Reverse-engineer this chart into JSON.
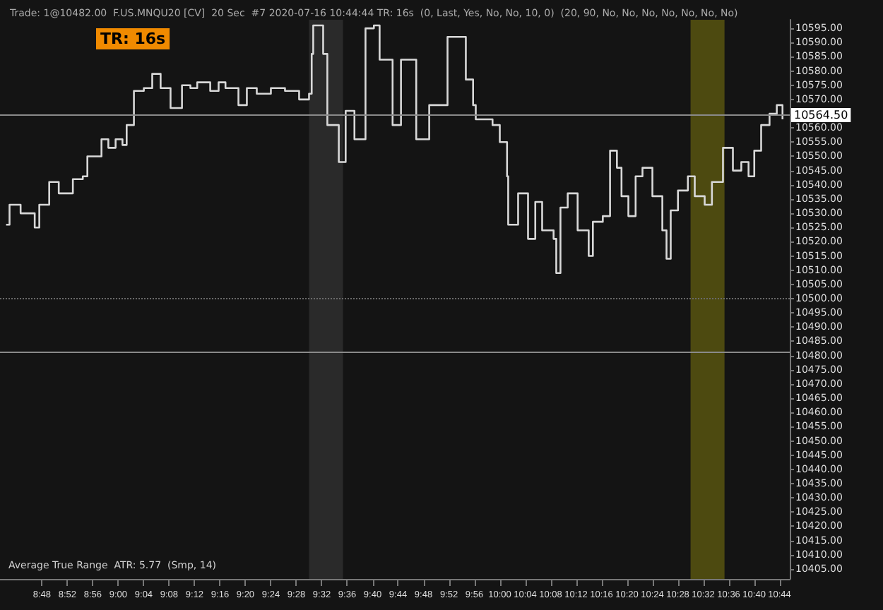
{
  "chart_data": {
    "type": "step",
    "title": "Trade: 1@10482.00  F.US.MNQU20 [CV]  20 Sec  #7 2020-07-16 10:44:44 TR: 16s  (0, Last, Yes, No, No, 10, 0)  (20, 90, No, No, No, No, No, No, No)",
    "annotations": [
      "TR: 16s",
      "Average True Range  ATR: 5.77  (Smp, 14)"
    ],
    "x": [
      8.706,
      8.715,
      8.744,
      8.781,
      8.793,
      8.819,
      8.844,
      8.881,
      8.907,
      8.919,
      8.956,
      8.974,
      8.993,
      9.011,
      9.022,
      9.041,
      9.067,
      9.089,
      9.111,
      9.137,
      9.167,
      9.189,
      9.207,
      9.241,
      9.263,
      9.281,
      9.315,
      9.337,
      9.363,
      9.4,
      9.437,
      9.474,
      9.5,
      9.507,
      9.511,
      9.537,
      9.548,
      9.578,
      9.596,
      9.619,
      9.648,
      9.67,
      9.685,
      9.719,
      9.741,
      9.781,
      9.815,
      9.863,
      9.881,
      9.911,
      9.93,
      9.937,
      9.981,
      10.0,
      10.019,
      10.022,
      10.048,
      10.074,
      10.093,
      10.111,
      10.141,
      10.148,
      10.159,
      10.178,
      10.204,
      10.233,
      10.244,
      10.27,
      10.289,
      10.307,
      10.319,
      10.337,
      10.356,
      10.374,
      10.4,
      10.426,
      10.437,
      10.448,
      10.467,
      10.493,
      10.511,
      10.537,
      10.556,
      10.585,
      10.611,
      10.633,
      10.652,
      10.667,
      10.685,
      10.707,
      10.726,
      10.741
    ],
    "series": [
      {
        "color": "#d8d8d8",
        "values": [
          10526,
          10533,
          10530,
          10525,
          10533,
          10541,
          10537,
          10542,
          10543,
          10550,
          10556,
          10553,
          10556,
          10554,
          10561,
          10573,
          10574,
          10579,
          10574,
          10567,
          10575,
          10574,
          10576,
          10573,
          10576,
          10574,
          10568,
          10574,
          10572,
          10574,
          10573,
          10570,
          10572,
          10586,
          10596,
          10586,
          10561,
          10548,
          10566,
          10556,
          10595,
          10596,
          10584,
          10561,
          10584,
          10556,
          10568,
          10592,
          10592,
          10577,
          10568,
          10563,
          10561,
          10555,
          10543,
          10526,
          10537,
          10521,
          10534,
          10524,
          10521,
          10509,
          10532,
          10537,
          10524,
          10515,
          10527,
          10529,
          10552,
          10546,
          10536,
          10529,
          10543,
          10546,
          10536,
          10524,
          10514,
          10531,
          10538,
          10543,
          10536,
          10533,
          10541,
          10553,
          10545,
          10548,
          10543,
          10552,
          10561,
          10565,
          10568,
          10563
        ]
      }
    ],
    "xlim": [
      8.69,
      10.76
    ],
    "ylim": [
      10401.5,
      10598
    ],
    "xticks": [
      {
        "value": 8.8,
        "label": "8:48"
      },
      {
        "value": 8.8667,
        "label": "8:52"
      },
      {
        "value": 8.9333,
        "label": "8:56"
      },
      {
        "value": 9,
        "label": "9:00"
      },
      {
        "value": 9.0667,
        "label": "9:04"
      },
      {
        "value": 9.1333,
        "label": "9:08"
      },
      {
        "value": 9.2,
        "label": "9:12"
      },
      {
        "value": 9.2667,
        "label": "9:16"
      },
      {
        "value": 9.3333,
        "label": "9:20"
      },
      {
        "value": 9.4,
        "label": "9:24"
      },
      {
        "value": 9.4667,
        "label": "9:28"
      },
      {
        "value": 9.5333,
        "label": "9:32"
      },
      {
        "value": 9.6,
        "label": "9:36"
      },
      {
        "value": 9.6667,
        "label": "9:40"
      },
      {
        "value": 9.7333,
        "label": "9:44"
      },
      {
        "value": 9.8,
        "label": "9:48"
      },
      {
        "value": 9.8667,
        "label": "9:52"
      },
      {
        "value": 9.9333,
        "label": "9:56"
      },
      {
        "value": 10,
        "label": "10:00"
      },
      {
        "value": 10.0667,
        "label": "10:04"
      },
      {
        "value": 10.1333,
        "label": "10:08"
      },
      {
        "value": 10.2,
        "label": "10:12"
      },
      {
        "value": 10.2667,
        "label": "10:16"
      },
      {
        "value": 10.3333,
        "label": "10:20"
      },
      {
        "value": 10.4,
        "label": "10:24"
      },
      {
        "value": 10.4667,
        "label": "10:28"
      },
      {
        "value": 10.5333,
        "label": "10:32"
      },
      {
        "value": 10.6,
        "label": "10:36"
      },
      {
        "value": 10.6667,
        "label": "10:40"
      },
      {
        "value": 10.7333,
        "label": "10:44"
      }
    ],
    "yticks": [
      {
        "value": 10405,
        "label": "10405.00"
      },
      {
        "value": 10410,
        "label": "10410.00"
      },
      {
        "value": 10415,
        "label": "10415.00"
      },
      {
        "value": 10420,
        "label": "10420.00"
      },
      {
        "value": 10425,
        "label": "10425.00"
      },
      {
        "value": 10430,
        "label": "10430.00"
      },
      {
        "value": 10435,
        "label": "10435.00"
      },
      {
        "value": 10440,
        "label": "10440.00"
      },
      {
        "value": 10445,
        "label": "10445.00"
      },
      {
        "value": 10450,
        "label": "10450.00"
      },
      {
        "value": 10455,
        "label": "10455.00"
      },
      {
        "value": 10460,
        "label": "10460.00"
      },
      {
        "value": 10465,
        "label": "10465.00"
      },
      {
        "value": 10470,
        "label": "10470.00"
      },
      {
        "value": 10475,
        "label": "10475.00"
      },
      {
        "value": 10480,
        "label": "10480.00"
      },
      {
        "value": 10485,
        "label": "10485.00"
      },
      {
        "value": 10490,
        "label": "10490.00"
      },
      {
        "value": 10495,
        "label": "10495.00"
      },
      {
        "value": 10500,
        "label": "10500.00"
      },
      {
        "value": 10505,
        "label": "10505.00"
      },
      {
        "value": 10510,
        "label": "10510.00"
      },
      {
        "value": 10515,
        "label": "10515.00"
      },
      {
        "value": 10520,
        "label": "10520.00"
      },
      {
        "value": 10525,
        "label": "10525.00"
      },
      {
        "value": 10530,
        "label": "10530.00"
      },
      {
        "value": 10535,
        "label": "10535.00"
      },
      {
        "value": 10540,
        "label": "10540.00"
      },
      {
        "value": 10545,
        "label": "10545.00"
      },
      {
        "value": 10550,
        "label": "10550.00"
      },
      {
        "value": 10555,
        "label": "10555.00"
      },
      {
        "value": 10560,
        "label": "10560.00"
      },
      {
        "value": 10570,
        "label": "10570.00"
      },
      {
        "value": 10575,
        "label": "10575.00"
      },
      {
        "value": 10580,
        "label": "10580.00"
      },
      {
        "value": 10585,
        "label": "10585.00"
      },
      {
        "value": 10590,
        "label": "10590.00"
      },
      {
        "value": 10595,
        "label": "10595.00"
      }
    ],
    "ref_lines": [
      {
        "axis": "y",
        "value": 10564.5,
        "label": "10564.50",
        "color": "#8a8a8a",
        "line_style": "solid"
      },
      {
        "axis": "y",
        "value": 10500,
        "color": "#6a6a6a",
        "line_style": "dotted"
      },
      {
        "axis": "y",
        "value": 10481.5,
        "color": "#8a8a8a",
        "line_style": "solid"
      }
    ],
    "bands": [
      {
        "axis": "x",
        "from": 9.5,
        "to": 9.589,
        "color": "#2a2a2a"
      },
      {
        "axis": "x",
        "from": 10.5,
        "to": 10.589,
        "color": "#4d4a10"
      }
    ],
    "grid": false,
    "marker": "none",
    "line_style": "solid"
  }
}
